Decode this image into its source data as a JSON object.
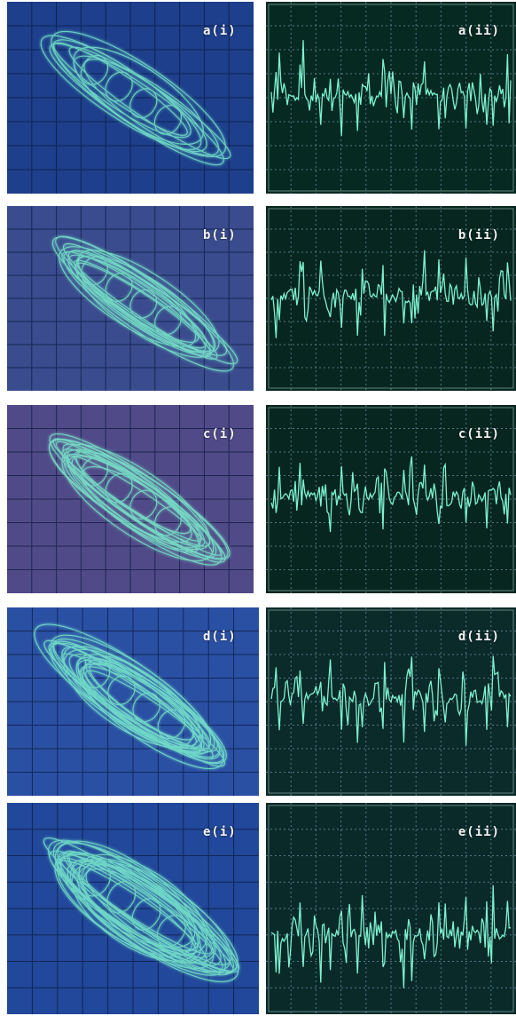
{
  "figure": {
    "rows": [
      {
        "left_label": "a(i)",
        "right_label": "a(ii)",
        "left_bg": "#1d3f8c",
        "right_bg": "#062a22"
      },
      {
        "left_label": "b(i)",
        "right_label": "b(ii)",
        "left_bg": "#3a4c8e",
        "right_bg": "#06261f"
      },
      {
        "left_label": "c(i)",
        "right_label": "c(ii)",
        "left_bg": "#514a88",
        "right_bg": "#06261f"
      },
      {
        "left_label": "d(i)",
        "right_label": "d(ii)",
        "left_bg": "#2a50a4",
        "right_bg": "#0b2a2a"
      },
      {
        "left_label": "e(i)",
        "right_label": "e(ii)",
        "left_bg": "#21489a",
        "right_bg": "#0a2a2a"
      }
    ],
    "trace_color": "#7df2cf",
    "grid_color": "#6a8aa0"
  }
}
